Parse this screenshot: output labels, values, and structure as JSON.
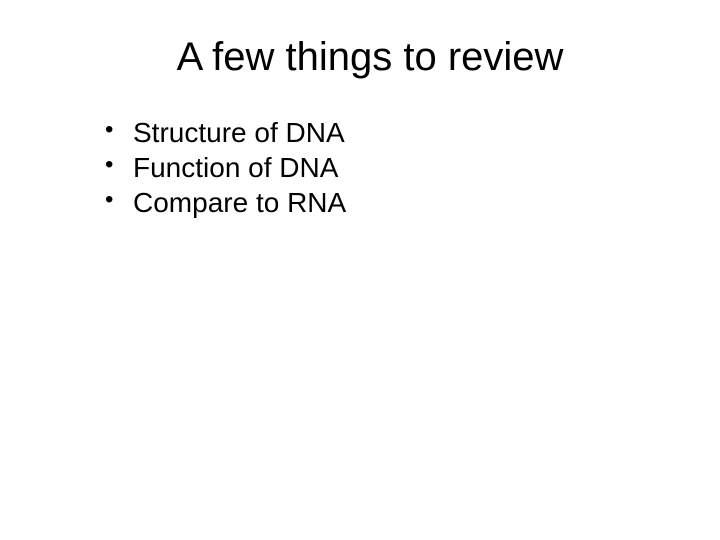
{
  "slide": {
    "title": "A few things to review",
    "title_fontsize": 40,
    "title_color": "#000000",
    "bullets": [
      {
        "text": "Structure of DNA"
      },
      {
        "text": "Function of DNA"
      },
      {
        "text": "Compare to RNA"
      }
    ],
    "bullet_fontsize": 28,
    "bullet_color": "#000000",
    "background_color": "#ffffff",
    "font_family": "Arial"
  }
}
